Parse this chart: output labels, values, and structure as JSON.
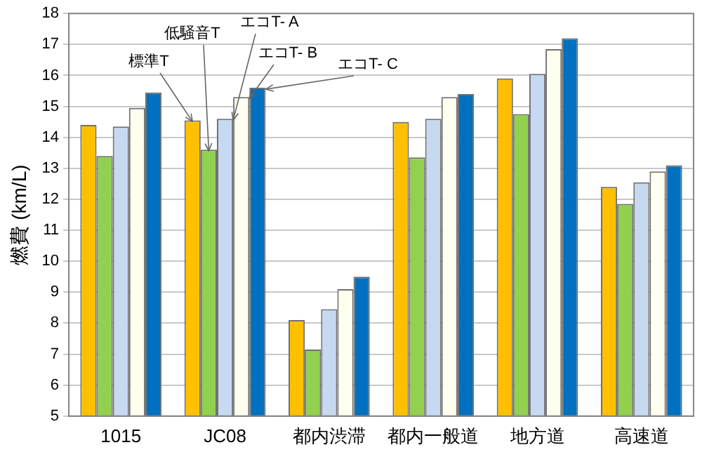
{
  "chart_data": {
    "type": "bar",
    "ylabel": "燃費 (km/L)",
    "categories": [
      "1015",
      "JC08",
      "都内渋滞",
      "都内一般道",
      "地方道",
      "高速道"
    ],
    "series": [
      {
        "name": "標準T",
        "color": "#ffc000",
        "values": [
          14.4,
          14.55,
          8.1,
          14.5,
          15.9,
          12.4
        ]
      },
      {
        "name": "低騒音T",
        "color": "#92d050",
        "values": [
          13.4,
          13.6,
          7.15,
          13.35,
          14.75,
          11.85
        ]
      },
      {
        "name": "エコT- A",
        "color": "#c6d9f1",
        "values": [
          14.35,
          14.6,
          8.45,
          14.6,
          16.05,
          12.55
        ]
      },
      {
        "name": "エコT- B",
        "color": "#fffff0",
        "values": [
          14.95,
          15.3,
          9.1,
          15.3,
          16.85,
          12.9
        ]
      },
      {
        "name": "エコT- C",
        "color": "#0070c0",
        "values": [
          15.45,
          15.6,
          9.5,
          15.4,
          17.2,
          13.1
        ]
      }
    ],
    "ylim": [
      5,
      18
    ],
    "yticks": [
      5,
      6,
      7,
      8,
      9,
      10,
      11,
      12,
      13,
      14,
      15,
      16,
      17,
      18
    ],
    "grid": "y",
    "legend": false
  }
}
